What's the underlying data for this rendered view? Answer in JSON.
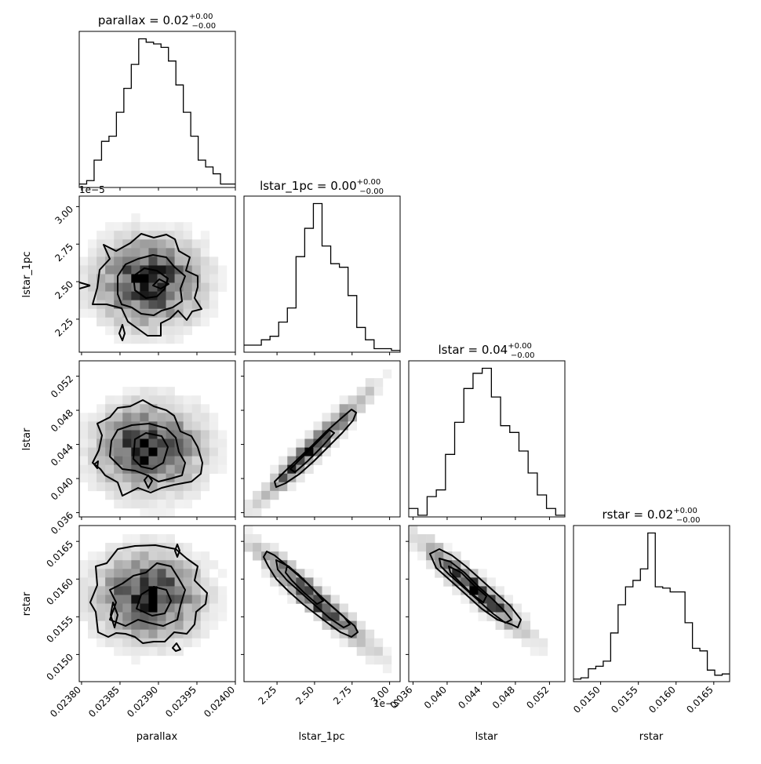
{
  "chart_data": {
    "type": "corner",
    "parameters": [
      "parallax",
      "lstar_1pc",
      "lstar",
      "rstar"
    ],
    "titles": {
      "parallax": {
        "name": "parallax",
        "value": "0.02",
        "plus": "+0.00",
        "minus": "−0.00"
      },
      "lstar_1pc": {
        "name": "lstar_1pc",
        "value": "0.00",
        "plus": "+0.00",
        "minus": "−0.00"
      },
      "lstar": {
        "name": "lstar",
        "value": "0.04",
        "plus": "+0.00",
        "minus": "−0.00"
      },
      "rstar": {
        "name": "rstar",
        "value": "0.02",
        "plus": "+0.00",
        "minus": "−0.00"
      }
    },
    "ranges": {
      "parallax": [
        0.023797,
        0.024
      ],
      "lstar_1pc": [
        2.03,
        3.07
      ],
      "lstar": [
        0.0355,
        0.0538
      ],
      "rstar": [
        0.01464,
        0.01671
      ]
    },
    "ticks": {
      "parallax": [
        0.0238,
        0.02385,
        0.0239,
        0.02395,
        0.024
      ],
      "lstar_1pc": [
        2.25,
        2.5,
        2.75,
        3.0
      ],
      "lstar_bottom": [
        0.036,
        0.04,
        0.044,
        0.048,
        0.052
      ],
      "lstar_left": [
        0.036,
        0.04,
        0.044,
        0.048,
        0.052
      ],
      "rstar_bottom": [
        0.015,
        0.0155,
        0.016,
        0.0165
      ],
      "rstar_left": [
        0.015,
        0.0155,
        0.016,
        0.0165
      ]
    },
    "tick_labels": {
      "parallax": [
        "0.02380",
        "0.02385",
        "0.02390",
        "0.02395",
        "0.02400"
      ],
      "lstar_1pc": [
        "2.25",
        "2.50",
        "2.75",
        "3.00"
      ],
      "lstar": [
        "0.036",
        "0.040",
        "0.044",
        "0.048",
        "0.052"
      ],
      "rstar": [
        "0.0150",
        "0.0155",
        "0.0160",
        "0.0165"
      ]
    },
    "axis_offset": "1e−5",
    "histograms": {
      "parallax": [
        2,
        4,
        16,
        27,
        30,
        44,
        58,
        72,
        87,
        85,
        84,
        82,
        74,
        60,
        44,
        30,
        16,
        12,
        8,
        2,
        2
      ],
      "lstar_1pc": [
        4,
        4,
        7,
        9,
        17,
        25,
        54,
        70,
        84,
        60,
        50,
        48,
        32,
        14,
        7,
        2,
        2,
        1
      ],
      "lstar": [
        5,
        1,
        12,
        16,
        37,
        56,
        76,
        85,
        88,
        71,
        54,
        50,
        39,
        26,
        13,
        5,
        1
      ],
      "rstar": [
        2,
        3,
        10,
        12,
        16,
        38,
        60,
        74,
        79,
        88,
        116,
        74,
        73,
        70,
        70,
        46,
        26,
        24,
        9,
        5,
        6
      ]
    },
    "grid": false,
    "xlabel": [
      "parallax",
      "lstar_1pc",
      "lstar",
      "rstar"
    ],
    "ylabel": [
      "lstar_1pc",
      "lstar",
      "rstar"
    ]
  }
}
